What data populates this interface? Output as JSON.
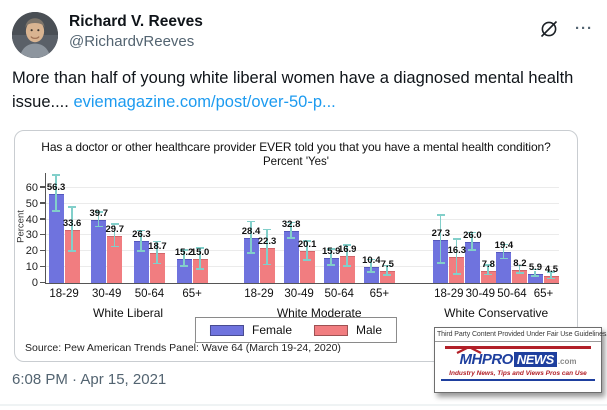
{
  "tweet": {
    "author": {
      "name": "Richard V. Reeves",
      "handle": "@RichardvReeves"
    },
    "body": {
      "text": "More than half of young white liberal women have a diagnosed mental health issue.... ",
      "link": "eviemagazine.com/post/over-50-p..."
    },
    "timestamp": "6:08 PM · Apr 15, 2021",
    "header_icons": {
      "grok": "circle-slash",
      "more_glyph": "···"
    }
  },
  "watermark": {
    "notice": "Third Party Content Provided Under Fair Use Guidelines.",
    "logo": {
      "mh": "MH",
      "pro": "PRO",
      "news": "NEWS",
      "tld": ".com"
    },
    "tagline": "Industry News, Tips and Views Pros can Use",
    "colors": {
      "blue": "#1e3f9e",
      "red": "#b22028"
    }
  },
  "chart_data": {
    "type": "bar",
    "title": "Has a doctor or other healthcare provider EVER told you that you have a mental health condition?",
    "subtitle": "Percent 'Yes'",
    "ylabel": "Percent",
    "yticks": [
      0,
      10,
      20,
      30,
      40,
      50,
      60
    ],
    "ylim": [
      0,
      70
    ],
    "grid": true,
    "categories": [
      "18-29",
      "30-49",
      "50-64",
      "65+"
    ],
    "panels": [
      {
        "label": "White Liberal",
        "female": [
          56.3,
          39.7,
          26.3,
          15.2
        ],
        "male": [
          33.6,
          29.7,
          18.7,
          15.0
        ],
        "female_moe": [
          11.5,
          4.5,
          6.5,
          5.0
        ],
        "male_moe": [
          14.0,
          7.0,
          7.0,
          6.5
        ]
      },
      {
        "label": "White Moderate",
        "female": [
          28.4,
          32.8,
          15.9,
          10.4
        ],
        "male": [
          22.3,
          20.1,
          16.9,
          7.5
        ],
        "female_moe": [
          10.0,
          5.0,
          5.0,
          4.0
        ],
        "male_moe": [
          11.0,
          6.0,
          6.5,
          3.0
        ]
      },
      {
        "label": "White Conservative",
        "female": [
          27.3,
          26.0,
          19.4,
          5.9
        ],
        "male": [
          16.3,
          7.8,
          8.2,
          4.5
        ],
        "female_moe": [
          15.0,
          5.5,
          4.5,
          2.0
        ],
        "male_moe": [
          11.0,
          3.0,
          2.5,
          2.0
        ]
      }
    ],
    "legend": [
      {
        "label": "Female",
        "color": "#6f73de"
      },
      {
        "label": "Male",
        "color": "#f17d80"
      }
    ],
    "legend_position": "bottom-center",
    "error_bar_color": "#82cfca",
    "source": "Source: Pew American Trends Panel: Wave 64 (March 19-24, 2020)"
  }
}
